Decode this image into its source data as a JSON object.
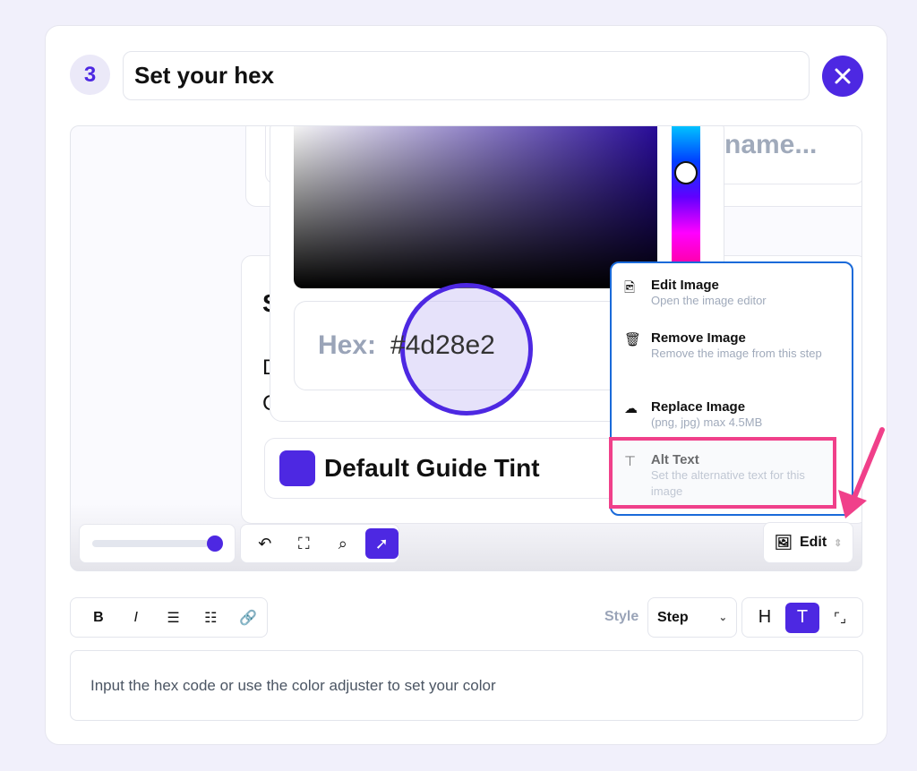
{
  "step": {
    "number": "3",
    "title": "Set your hex"
  },
  "preview": {
    "name_placeholder": "name...",
    "clipped_letters": [
      "S",
      "D",
      "C"
    ],
    "hex_label": "Hex:",
    "hex_value": "#4d28e2",
    "tint_label": "Default Guide Tint",
    "tint_color": "#4d28e2",
    "zoom_slider_percent": 100
  },
  "menu": {
    "items": [
      {
        "icon": "edit-image-icon",
        "title": "Edit Image",
        "desc": "Open the image editor"
      },
      {
        "icon": "trash-icon",
        "title": "Remove Image",
        "desc": "Remove the image from this step"
      },
      {
        "icon": "cloud-upload-icon",
        "title": "Replace Image",
        "desc": "(png, jpg) max 4.5MB"
      },
      {
        "icon": "text-box-icon",
        "title": "Alt Text",
        "desc": "Set the alternative text for this image"
      }
    ]
  },
  "toolbar": {
    "edit_label": "Edit"
  },
  "editor": {
    "style_label": "Style",
    "style_value": "Step",
    "description": "Input the hex code or use the color adjuster to set your color"
  },
  "colors": {
    "accent": "#4d28e2",
    "highlight": "#f0408a",
    "menu_border": "#1a6ad9"
  }
}
